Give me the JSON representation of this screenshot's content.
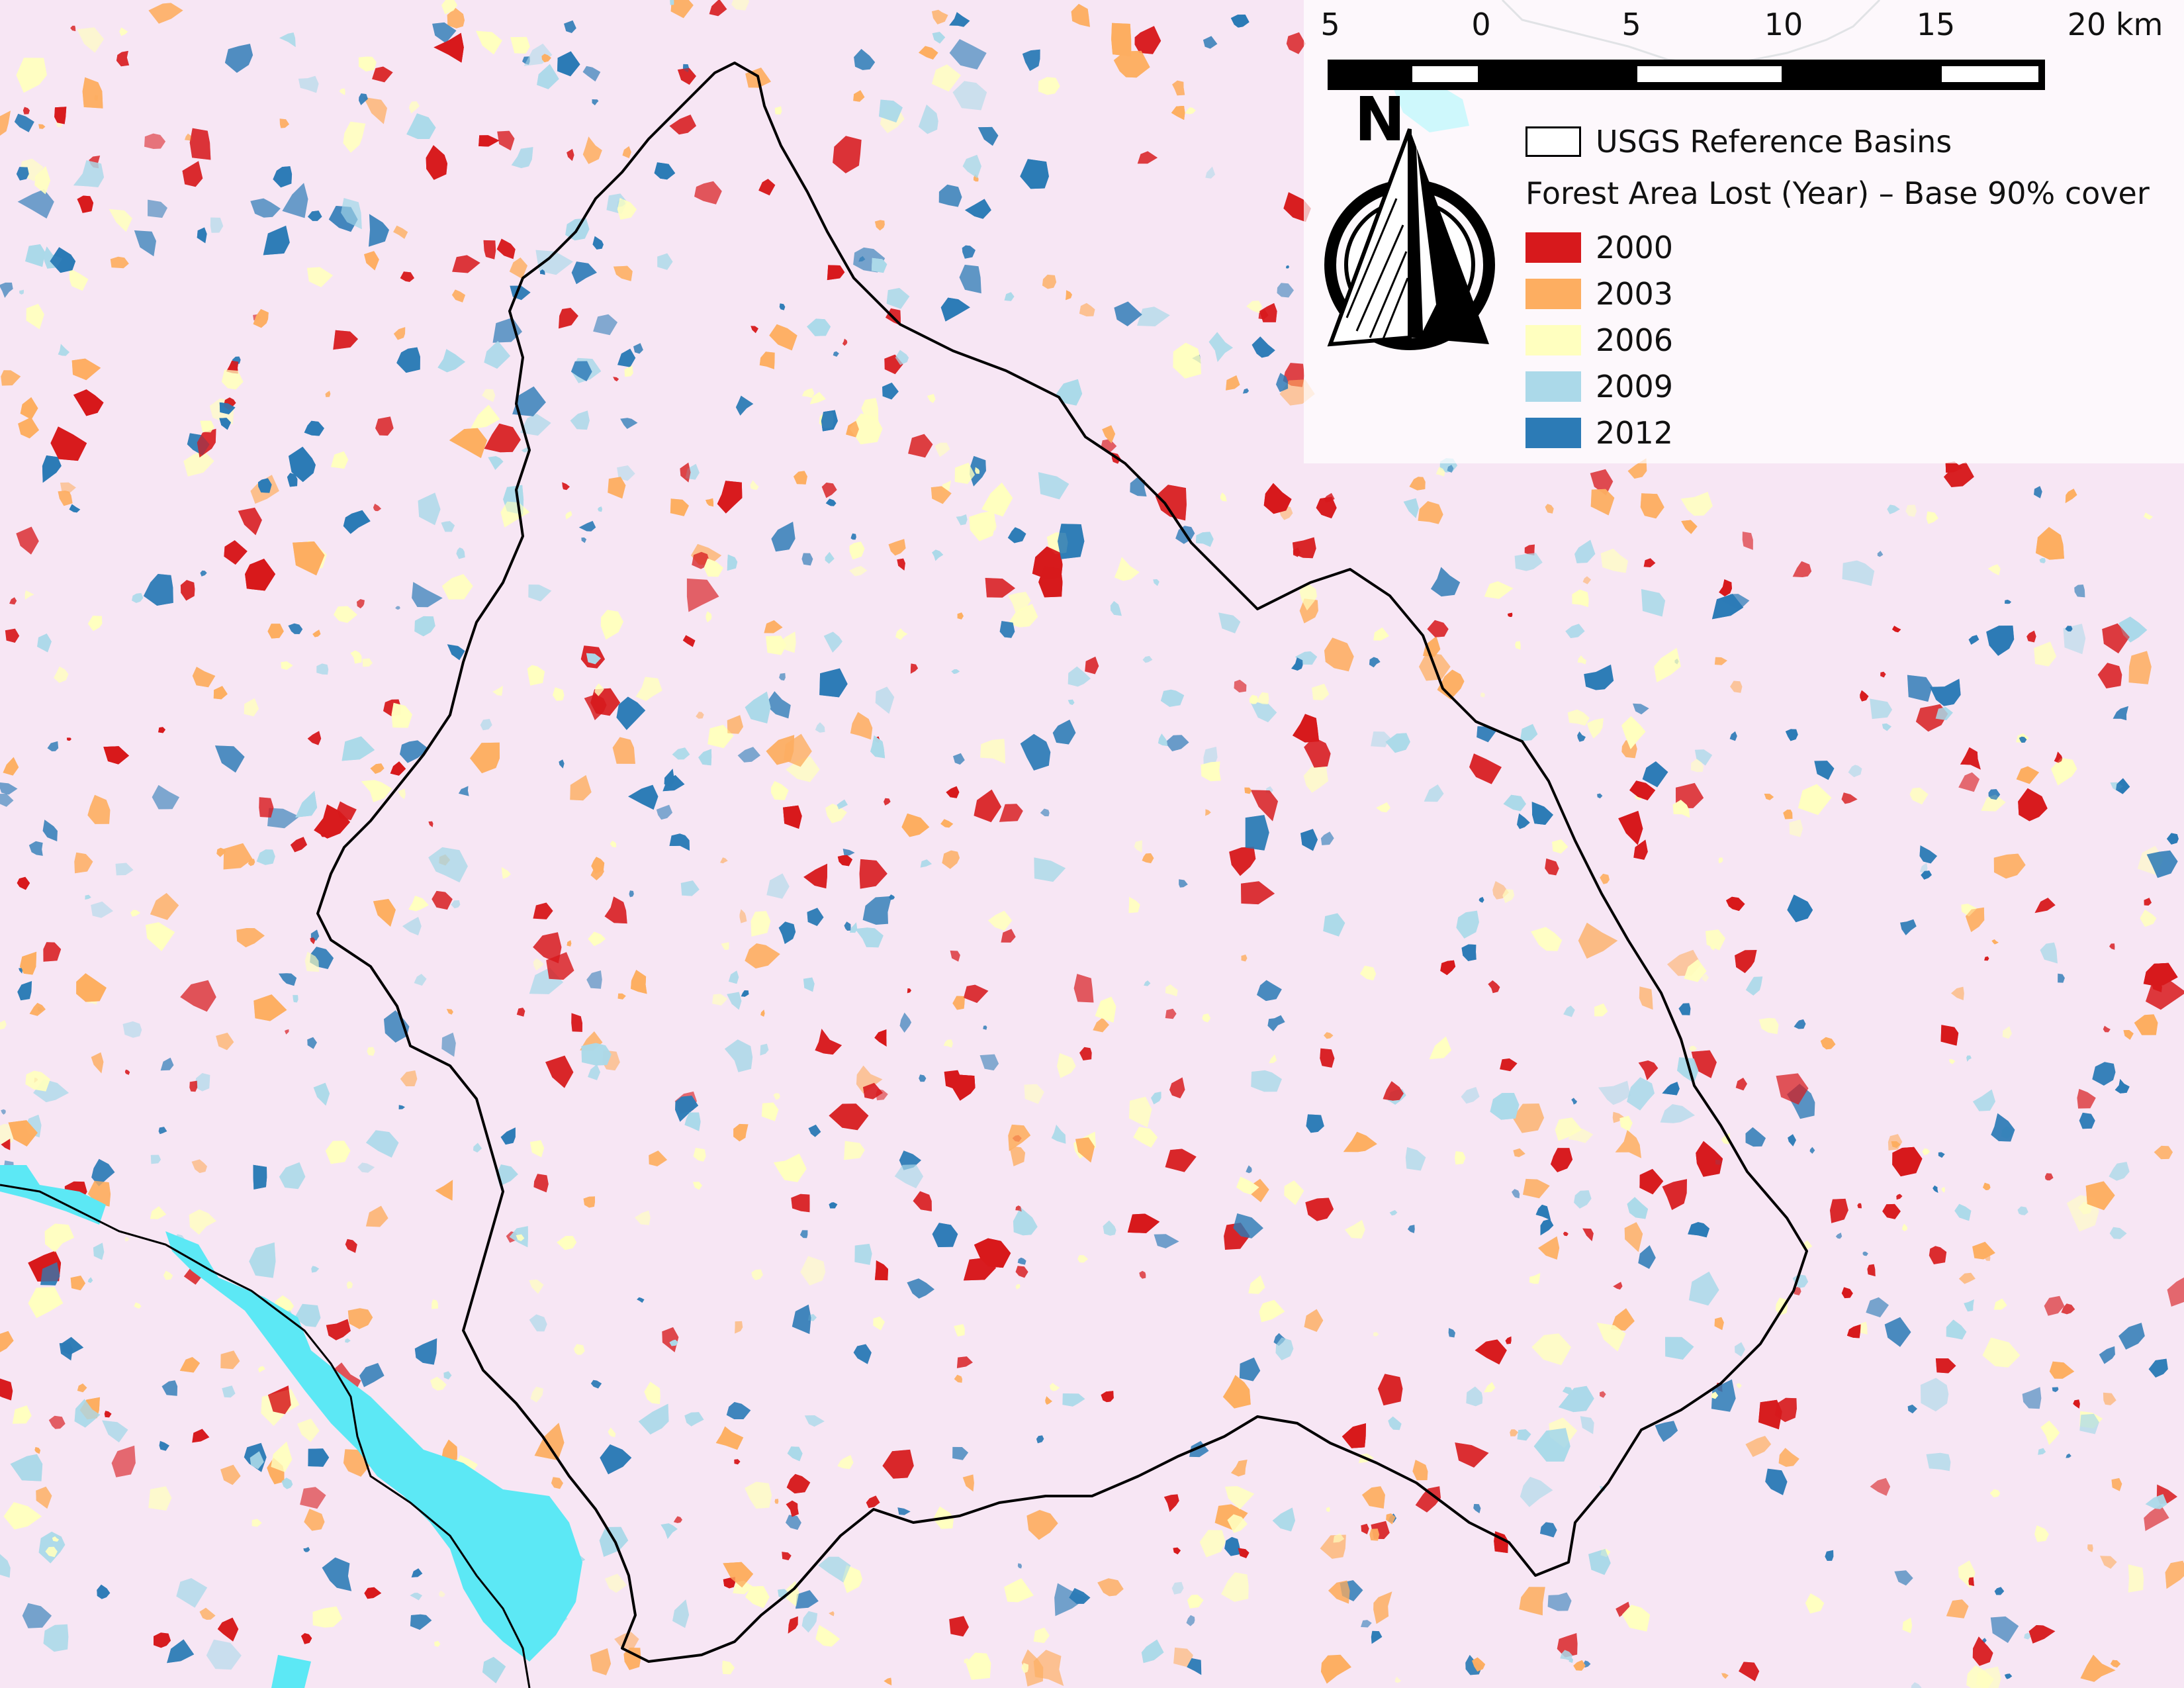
{
  "map": {
    "scale_bar": {
      "labels": [
        "5",
        "0",
        "5",
        "10",
        "15",
        "20 km"
      ]
    },
    "north_arrow_label": "N",
    "legend": {
      "basin_label": "USGS Reference Basins",
      "loss_title": "Forest Area Lost (Year) – Base 90% cover",
      "classes": [
        {
          "label": "2000",
          "color": "#d7191c"
        },
        {
          "label": "2003",
          "color": "#fdae61"
        },
        {
          "label": "2006",
          "color": "#ffffbf"
        },
        {
          "label": "2009",
          "color": "#abd9e9"
        },
        {
          "label": "2012",
          "color": "#2c7bb6"
        }
      ]
    },
    "colors": {
      "background": "#f7e6f4",
      "water": "#5ce8f5",
      "basin_outline": "#000000"
    }
  }
}
